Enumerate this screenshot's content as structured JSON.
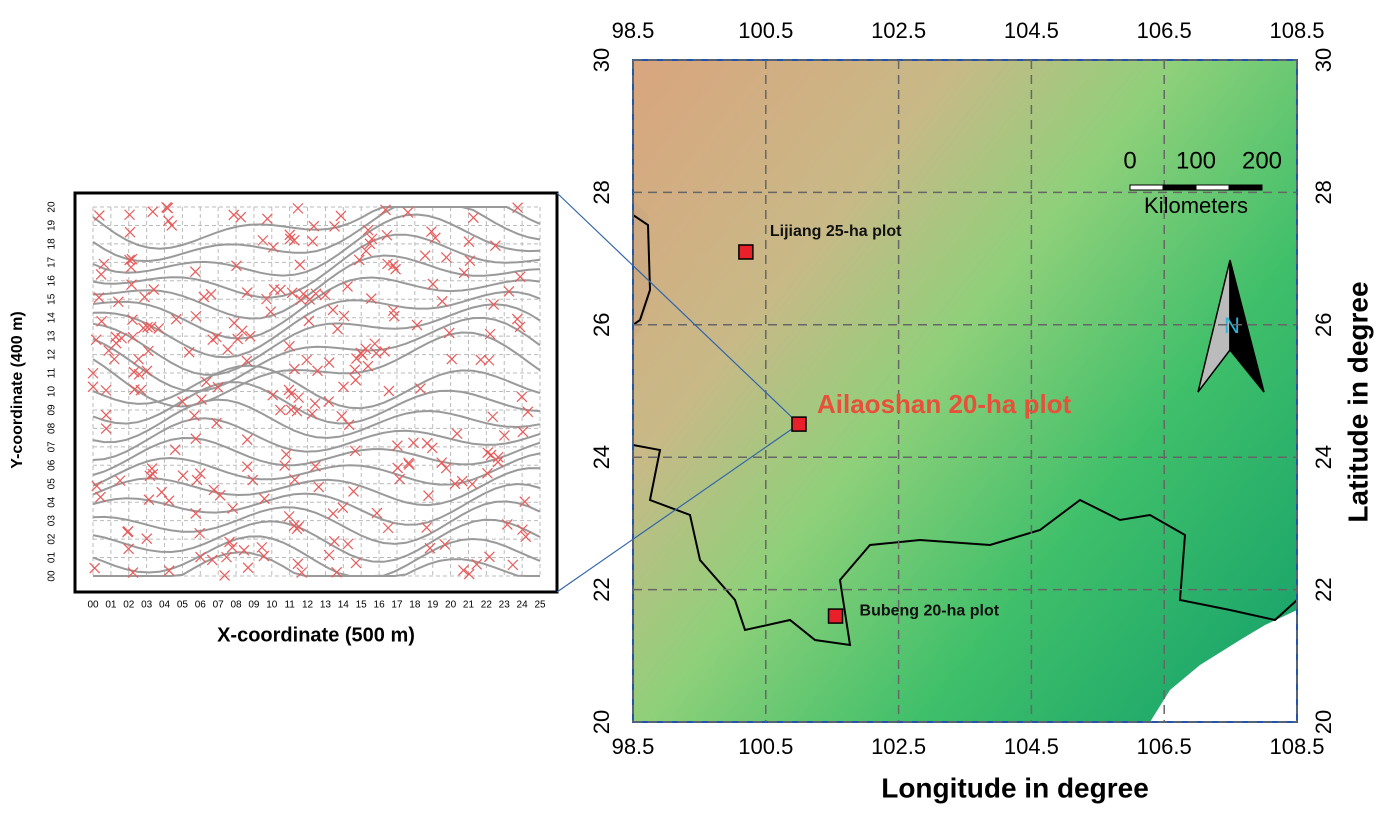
{
  "inset": {
    "x_title": "X-coordinate (500 m)",
    "y_title": "Y-coordinate (400 m)",
    "xlim": [
      0,
      25
    ],
    "ylim": [
      0,
      20
    ],
    "xticks": [
      {
        "value": 0,
        "label": "00"
      },
      {
        "value": 1,
        "label": "01"
      },
      {
        "value": 2,
        "label": "02"
      },
      {
        "value": 3,
        "label": "03"
      },
      {
        "value": 4,
        "label": "04"
      },
      {
        "value": 5,
        "label": "05"
      },
      {
        "value": 6,
        "label": "06"
      },
      {
        "value": 7,
        "label": "07"
      },
      {
        "value": 8,
        "label": "08"
      },
      {
        "value": 9,
        "label": "09"
      },
      {
        "value": 10,
        "label": "10"
      },
      {
        "value": 11,
        "label": "11"
      },
      {
        "value": 12,
        "label": "12"
      },
      {
        "value": 13,
        "label": "13"
      },
      {
        "value": 14,
        "label": "14"
      },
      {
        "value": 15,
        "label": "15"
      },
      {
        "value": 16,
        "label": "16"
      },
      {
        "value": 17,
        "label": "17"
      },
      {
        "value": 18,
        "label": "18"
      },
      {
        "value": 19,
        "label": "19"
      },
      {
        "value": 20,
        "label": "20"
      },
      {
        "value": 21,
        "label": "21"
      },
      {
        "value": 22,
        "label": "22"
      },
      {
        "value": 23,
        "label": "23"
      },
      {
        "value": 24,
        "label": "24"
      },
      {
        "value": 25,
        "label": "25"
      }
    ],
    "yticks": [
      {
        "value": 0,
        "label": "00"
      },
      {
        "value": 1,
        "label": "01"
      },
      {
        "value": 2,
        "label": "02"
      },
      {
        "value": 3,
        "label": "03"
      },
      {
        "value": 4,
        "label": "04"
      },
      {
        "value": 5,
        "label": "05"
      },
      {
        "value": 6,
        "label": "06"
      },
      {
        "value": 7,
        "label": "07"
      },
      {
        "value": 8,
        "label": "08"
      },
      {
        "value": 9,
        "label": "09"
      },
      {
        "value": 10,
        "label": "10"
      },
      {
        "value": 11,
        "label": "11"
      },
      {
        "value": 12,
        "label": "12"
      },
      {
        "value": 13,
        "label": "13"
      },
      {
        "value": 14,
        "label": "14"
      },
      {
        "value": 15,
        "label": "15"
      },
      {
        "value": 16,
        "label": "16"
      },
      {
        "value": 17,
        "label": "17"
      },
      {
        "value": 18,
        "label": "18"
      },
      {
        "value": 19,
        "label": "19"
      },
      {
        "value": 20,
        "label": "20"
      }
    ]
  },
  "map": {
    "x_title": "Longitude in degree",
    "y_title": "Latitude in degree",
    "xlim": [
      98.5,
      108.5
    ],
    "ylim": [
      20,
      30
    ],
    "xticks": [
      98.5,
      100.5,
      102.5,
      104.5,
      106.5,
      108.5
    ],
    "yticks": [
      20,
      22,
      24,
      26,
      28,
      30
    ],
    "plots": [
      {
        "name": "Lijiang 25-ha plot",
        "lon": 100.2,
        "lat": 27.1,
        "label_color": "#111111"
      },
      {
        "name": "Ailaoshan 20-ha plot",
        "lon": 101.0,
        "lat": 24.5,
        "label_color": "#e8503a"
      },
      {
        "name": "Bubeng 20-ha plot",
        "lon": 101.55,
        "lat": 21.6,
        "label_color": "#111111"
      }
    ],
    "scale": {
      "ticks": [
        0,
        100,
        200
      ],
      "unit": "Kilometers"
    },
    "north": "N"
  }
}
